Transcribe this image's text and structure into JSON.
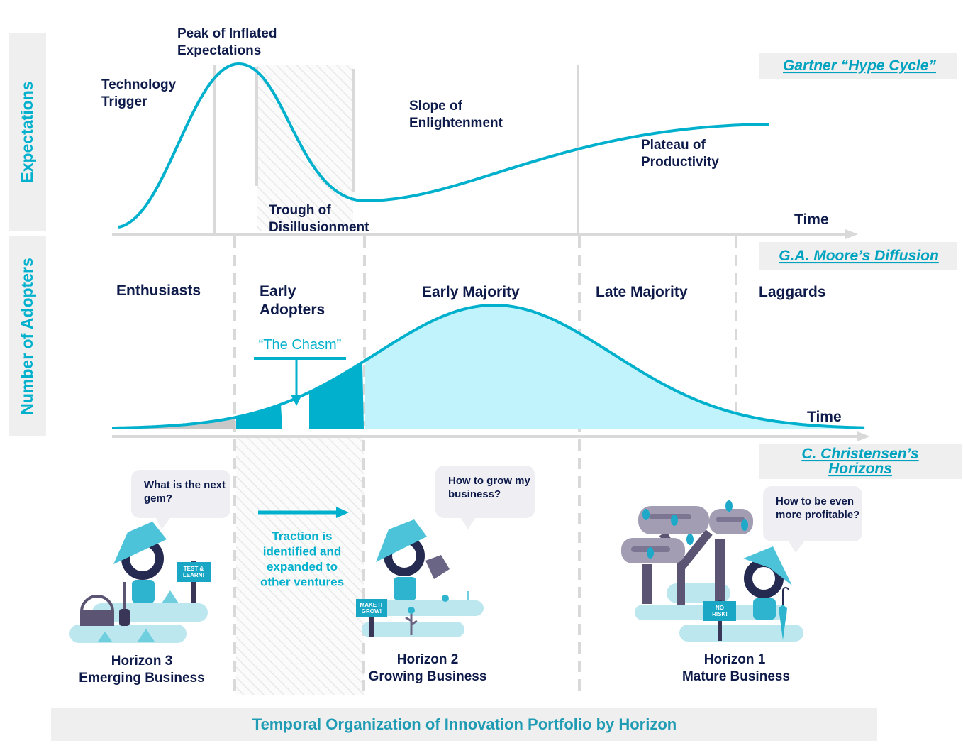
{
  "colors": {
    "accent": "#00b0cc",
    "text": "#0d1a4a",
    "fill_light": "#c0f3fb",
    "grid": "#d9d9d9",
    "panel": "#efefef"
  },
  "side_labels": {
    "top": "Expectations",
    "bottom": "Number of Adopters"
  },
  "hype": {
    "source": "Gartner “Hype Cycle”",
    "phases": [
      {
        "lines": [
          "Technology",
          "Trigger"
        ]
      },
      {
        "lines": [
          "Peak of Inflated",
          "Expectations"
        ]
      },
      {
        "lines": [
          "Trough of",
          "Disillusionment"
        ]
      },
      {
        "lines": [
          "Slope of",
          "Enlightenment"
        ]
      },
      {
        "lines": [
          "Plateau of",
          "Productivity"
        ]
      }
    ],
    "axis_label": "Time"
  },
  "diffusion": {
    "source": "G.A. Moore’s Diffusion",
    "segments": [
      {
        "lines": [
          "Enthusiasts"
        ]
      },
      {
        "lines": [
          "Early",
          "Adopters"
        ]
      },
      {
        "lines": [
          "Early Majority"
        ]
      },
      {
        "lines": [
          "Late Majority"
        ]
      },
      {
        "lines": [
          "Laggards"
        ]
      }
    ],
    "chasm": "“The Chasm”",
    "axis_label": "Time"
  },
  "horizons": {
    "source_lines": [
      "C. Christensen’s",
      "Horizons"
    ],
    "traction_lines": [
      "Traction is",
      "identified and",
      "expanded to",
      "other ventures"
    ],
    "items": [
      {
        "title": "Horizon 3",
        "subtitle": "Emerging Business",
        "question": [
          "What is the next",
          "gem?"
        ],
        "sign": [
          "TEST &",
          "LEARN!"
        ]
      },
      {
        "title": "Horizon 2",
        "subtitle": "Growing Business",
        "question": [
          "How to grow my",
          "business?"
        ],
        "sign": [
          "MAKE IT",
          "GROW!"
        ]
      },
      {
        "title": "Horizon 1",
        "subtitle": "Mature Business",
        "question": [
          "How to be even",
          "more profitable?"
        ],
        "sign": [
          "NO",
          "RISK!"
        ]
      }
    ]
  },
  "footer": "Temporal Organization of Innovation Portfolio by Horizon"
}
